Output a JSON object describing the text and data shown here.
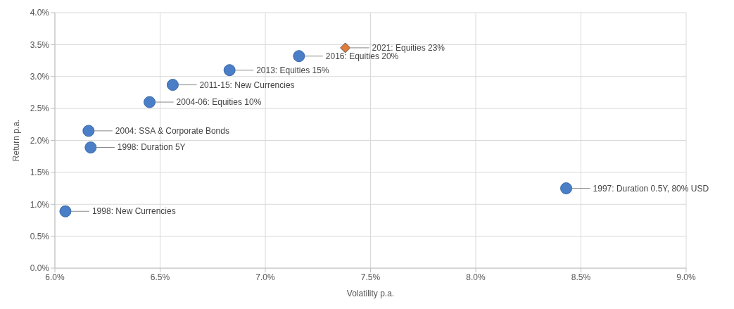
{
  "chart_data": {
    "type": "scatter",
    "xlabel": "Volatility p.a.",
    "ylabel": "Return p.a.",
    "xlim": [
      6.0,
      9.0
    ],
    "xticks": [
      {
        "value": 6.0,
        "label": "6.0%"
      },
      {
        "value": 6.5,
        "label": "6.5%"
      },
      {
        "value": 7.0,
        "label": "7.0%"
      },
      {
        "value": 7.5,
        "label": "7.5%"
      },
      {
        "value": 8.0,
        "label": "8.0%"
      },
      {
        "value": 8.5,
        "label": "8.5%"
      },
      {
        "value": 9.0,
        "label": "9.0%"
      }
    ],
    "ylim": [
      0,
      4.0
    ],
    "yticks": [
      {
        "value": 0,
        "label": "0.0%"
      },
      {
        "value": 0.5,
        "label": "0.5%"
      },
      {
        "value": 1.0,
        "label": "1.0%"
      },
      {
        "value": 1.5,
        "label": "1.5%"
      },
      {
        "value": 2.0,
        "label": "2.0%"
      },
      {
        "value": 2.5,
        "label": "2.5%"
      },
      {
        "value": 3.0,
        "label": "3.0%"
      },
      {
        "value": 3.5,
        "label": "3.5%"
      },
      {
        "value": 4.0,
        "label": "4.0%"
      }
    ],
    "grid": true,
    "series": [
      {
        "color": "#4a7fc8",
        "marker": "circle",
        "x": [
          6.05,
          6.17,
          6.16,
          6.45,
          6.56,
          6.83,
          7.16,
          8.43
        ],
        "values": [
          0.89,
          1.89,
          2.15,
          2.6,
          2.87,
          3.1,
          3.32,
          1.25
        ]
      },
      {
        "color": "#e07b39",
        "marker": "diamond",
        "x": [
          7.38
        ],
        "values": [
          3.45
        ]
      }
    ],
    "annotations": [
      {
        "text": "1998: New Currencies",
        "x": 6.05,
        "y": 0.89
      },
      {
        "text": "1998: Duration 5Y",
        "x": 6.17,
        "y": 1.89
      },
      {
        "text": "2004: SSA & Corporate Bonds",
        "x": 6.16,
        "y": 2.15
      },
      {
        "text": "2004-06: Equities 10%",
        "x": 6.45,
        "y": 2.6
      },
      {
        "text": "2011-15: New Currencies",
        "x": 6.56,
        "y": 2.87
      },
      {
        "text": "2013: Equities 15%",
        "x": 6.83,
        "y": 3.1
      },
      {
        "text": "2016: Equities 20%",
        "x": 7.16,
        "y": 3.32
      },
      {
        "text": "2021: Equities 23%",
        "x": 7.38,
        "y": 3.45
      },
      {
        "text": "1997: Duration 0.5Y, 80% USD",
        "x": 8.43,
        "y": 1.25
      }
    ]
  }
}
